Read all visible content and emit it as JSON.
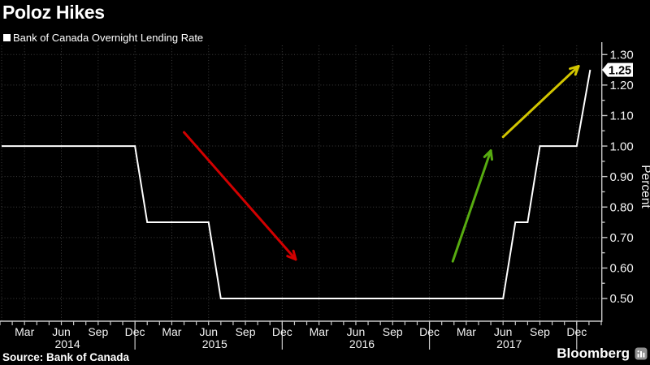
{
  "header": {
    "title": "Poloz Hikes",
    "legend_label": "Bank of Canada Overnight Lending Rate",
    "legend_marker_color": "#ffffff"
  },
  "footer": {
    "source": "Source: Bank of Canada",
    "brand": "Bloomberg"
  },
  "chart_data": {
    "type": "line",
    "subtype": "step",
    "title": "Poloz Hikes",
    "series_label": "Bank of Canada Overnight Lending Rate",
    "ylabel": "Percent",
    "background": "#000000",
    "grid": {
      "show": true,
      "style": "dotted",
      "color": "#3f3f3f"
    },
    "ylim": [
      0.4256,
      1.33
    ],
    "y_ticks": [
      0.5,
      0.6,
      0.7,
      0.8,
      0.9,
      1.0,
      1.1,
      1.2,
      1.3
    ],
    "y_tick_labels": [
      "0.50",
      "0.60",
      "0.70",
      "0.80",
      "0.90",
      "1.00",
      "1.10",
      "1.20",
      "1.30"
    ],
    "y_minor_ticks": [
      0.55,
      0.65,
      0.75,
      0.85,
      0.95,
      1.05,
      1.15,
      1.25
    ],
    "x_axis": {
      "xlim_months": [
        0,
        49
      ],
      "epoch": "month index 0 = end of Jan 2014, month-end spacing",
      "quarter_first_month": 2,
      "quarter_label_cycle": [
        "Mar",
        "Jun",
        "Sep",
        "Dec"
      ],
      "quarter_last_month": 47,
      "year_boundary_months": [
        11,
        23,
        35,
        47
      ],
      "year_labels": [
        {
          "label": "2014",
          "center_month": 5.5
        },
        {
          "label": "2015",
          "center_month": 17.5
        },
        {
          "label": "2016",
          "center_month": 29.5
        },
        {
          "label": "2017",
          "center_month": 41.5
        }
      ]
    },
    "series": [
      {
        "name": "Bank of Canada Overnight Lending Rate",
        "color": "#ffffff",
        "points_month_value": [
          [
            0.13,
            1.0
          ],
          [
            11,
            1.0
          ],
          [
            12,
            0.75
          ],
          [
            17,
            0.75
          ],
          [
            18,
            0.5
          ],
          [
            41,
            0.5
          ],
          [
            42,
            0.75
          ],
          [
            43,
            0.75
          ],
          [
            44,
            1.0
          ],
          [
            47,
            1.0
          ],
          [
            48.1,
            1.25
          ]
        ]
      }
    ],
    "steps": [
      {
        "period": "Jan 2014 - Dec 2014",
        "rate": 1.0
      },
      {
        "period": "Jan 2015 - Jun 2015",
        "rate": 0.75
      },
      {
        "period": "Jul 2015 - Jun 2017",
        "rate": 0.5
      },
      {
        "period": "Jul 2017 - Aug 2017",
        "rate": 0.75
      },
      {
        "period": "Sep 2017 - Dec 2017",
        "rate": 1.0
      },
      {
        "period": "Jan 2018",
        "rate": 1.25
      }
    ],
    "last_value_label": {
      "text": "1.25",
      "value": 1.25,
      "bg": "#ffffff",
      "fg": "#000000"
    },
    "annotations": [
      {
        "name": "cut-cycle-arrow",
        "shape": "arrow",
        "color": "#d10000",
        "from_month_value": [
          15.0,
          1.045
        ],
        "to_month_value": [
          24.1,
          0.628
        ]
      },
      {
        "name": "hike-arrow-2017",
        "shape": "arrow",
        "color": "#57ab10",
        "from_month_value": [
          36.9,
          0.622
        ],
        "to_month_value": [
          40.0,
          0.985
        ]
      },
      {
        "name": "hike-arrow-2018",
        "shape": "arrow",
        "color": "#d2c500",
        "from_month_value": [
          41.0,
          1.03
        ],
        "to_month_value": [
          47.15,
          1.262
        ]
      }
    ],
    "axis_color": "#c8c8c8",
    "label_color": "#f2f2f2"
  }
}
